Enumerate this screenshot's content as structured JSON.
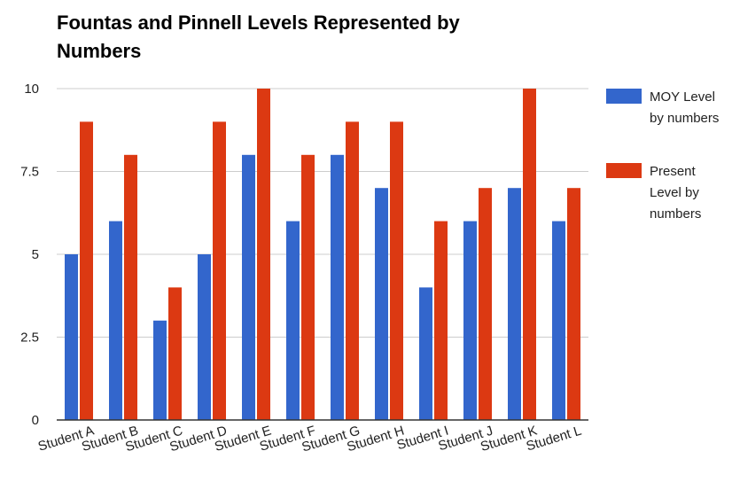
{
  "chart_data": {
    "type": "bar",
    "title": "Fountas and Pinnell Levels Represented by Numbers",
    "xlabel": "",
    "ylabel": "",
    "ylim": [
      0,
      10
    ],
    "yticks": [
      0,
      2.5,
      5,
      7.5,
      10
    ],
    "ytick_labels": [
      "0",
      "2.5",
      "5",
      "7.5",
      "10"
    ],
    "grid": true,
    "legend_position": "right",
    "categories": [
      "Student A",
      "Student B",
      "Student C",
      "Student D",
      "Student E",
      "Student F",
      "Student G",
      "Student H",
      "Student I",
      "Student J",
      "Student K",
      "Student L"
    ],
    "series": [
      {
        "name": "MOY Level by numbers",
        "color": "#3366cc",
        "values": [
          5,
          6,
          3,
          5,
          8,
          6,
          8,
          7,
          4,
          6,
          7,
          6
        ]
      },
      {
        "name": "Present Level by numbers",
        "color": "#dc3912",
        "values": [
          9,
          8,
          4,
          9,
          10,
          8,
          9,
          9,
          6,
          7,
          10,
          7
        ]
      }
    ]
  }
}
